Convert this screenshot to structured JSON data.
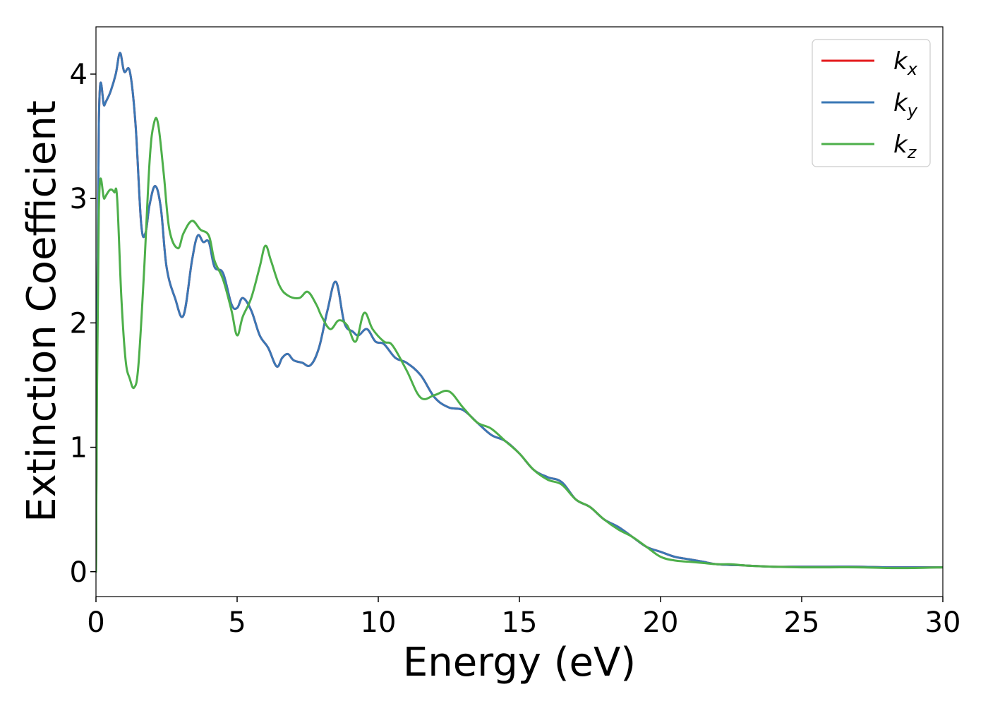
{
  "chart_data": {
    "type": "line",
    "title": "",
    "xlabel": "Energy (eV)",
    "ylabel": "Extinction Coefficient",
    "xlim": [
      0,
      30
    ],
    "ylim": [
      -0.2,
      4.38
    ],
    "xticks": [
      0,
      5,
      10,
      15,
      20,
      25,
      30
    ],
    "yticks": [
      0,
      1,
      2,
      3,
      4
    ],
    "grid": false,
    "legend_position": "top-right",
    "series": [
      {
        "name": "k_x",
        "base": "k",
        "sub": "x",
        "color": "#e41a1c",
        "x": [
          0,
          0.1,
          0.3,
          0.5,
          0.7,
          0.85,
          1.0,
          1.2,
          1.4,
          1.6,
          1.75,
          1.9,
          2.1,
          2.3,
          2.5,
          2.8,
          3.1,
          3.4,
          3.6,
          3.8,
          4.0,
          4.2,
          4.5,
          4.8,
          5.0,
          5.2,
          5.5,
          5.8,
          6.1,
          6.4,
          6.6,
          6.8,
          7.0,
          7.3,
          7.6,
          7.9,
          8.2,
          8.5,
          8.8,
          9.1,
          9.3,
          9.6,
          9.9,
          10.2,
          10.6,
          11.0,
          11.5,
          12.0,
          12.5,
          13.0,
          13.5,
          14.0,
          14.5,
          15.0,
          15.5,
          16.0,
          16.5,
          17.0,
          17.5,
          18.0,
          18.5,
          19.0,
          19.5,
          20.0,
          20.5,
          21.0,
          21.5,
          22.0,
          23.0,
          24.0,
          25.0,
          26.0,
          27.0,
          28.0,
          29.0,
          30.0
        ],
        "y": [
          0,
          3.6,
          3.75,
          3.85,
          4.0,
          4.17,
          4.02,
          4.02,
          3.6,
          2.8,
          2.72,
          2.95,
          3.1,
          2.92,
          2.45,
          2.2,
          2.06,
          2.5,
          2.7,
          2.65,
          2.65,
          2.45,
          2.4,
          2.15,
          2.12,
          2.2,
          2.1,
          1.9,
          1.8,
          1.65,
          1.72,
          1.75,
          1.7,
          1.68,
          1.66,
          1.8,
          2.1,
          2.33,
          2.0,
          1.93,
          1.9,
          1.95,
          1.85,
          1.83,
          1.72,
          1.68,
          1.58,
          1.4,
          1.32,
          1.3,
          1.2,
          1.1,
          1.05,
          0.95,
          0.82,
          0.76,
          0.72,
          0.58,
          0.52,
          0.42,
          0.36,
          0.28,
          0.2,
          0.16,
          0.12,
          0.1,
          0.08,
          0.06,
          0.05,
          0.04,
          0.04,
          0.04,
          0.04,
          0.035,
          0.035,
          0.035
        ]
      },
      {
        "name": "k_y",
        "base": "k",
        "sub": "y",
        "color": "#3a77b5",
        "x": [
          0,
          0.1,
          0.3,
          0.5,
          0.7,
          0.85,
          1.0,
          1.2,
          1.4,
          1.6,
          1.75,
          1.9,
          2.1,
          2.3,
          2.5,
          2.8,
          3.1,
          3.4,
          3.6,
          3.8,
          4.0,
          4.2,
          4.5,
          4.8,
          5.0,
          5.2,
          5.5,
          5.8,
          6.1,
          6.4,
          6.6,
          6.8,
          7.0,
          7.3,
          7.6,
          7.9,
          8.2,
          8.5,
          8.8,
          9.1,
          9.3,
          9.6,
          9.9,
          10.2,
          10.6,
          11.0,
          11.5,
          12.0,
          12.5,
          13.0,
          13.5,
          14.0,
          14.5,
          15.0,
          15.5,
          16.0,
          16.5,
          17.0,
          17.5,
          18.0,
          18.5,
          19.0,
          19.5,
          20.0,
          20.5,
          21.0,
          21.5,
          22.0,
          23.0,
          24.0,
          25.0,
          26.0,
          27.0,
          28.0,
          29.0,
          30.0
        ],
        "y": [
          0,
          3.6,
          3.75,
          3.85,
          4.0,
          4.17,
          4.02,
          4.02,
          3.6,
          2.8,
          2.72,
          2.95,
          3.1,
          2.92,
          2.45,
          2.2,
          2.06,
          2.5,
          2.7,
          2.65,
          2.65,
          2.45,
          2.4,
          2.15,
          2.12,
          2.2,
          2.1,
          1.9,
          1.8,
          1.65,
          1.72,
          1.75,
          1.7,
          1.68,
          1.66,
          1.8,
          2.1,
          2.33,
          2.0,
          1.93,
          1.9,
          1.95,
          1.85,
          1.83,
          1.72,
          1.68,
          1.58,
          1.4,
          1.32,
          1.3,
          1.2,
          1.1,
          1.05,
          0.95,
          0.82,
          0.76,
          0.72,
          0.58,
          0.52,
          0.42,
          0.36,
          0.28,
          0.2,
          0.16,
          0.12,
          0.1,
          0.08,
          0.06,
          0.05,
          0.04,
          0.04,
          0.04,
          0.04,
          0.035,
          0.035,
          0.035
        ]
      },
      {
        "name": "k_z",
        "base": "k",
        "sub": "z",
        "color": "#4daf4a",
        "x": [
          0,
          0.1,
          0.3,
          0.5,
          0.65,
          0.75,
          0.9,
          1.05,
          1.2,
          1.35,
          1.5,
          1.7,
          1.9,
          2.05,
          2.2,
          2.4,
          2.6,
          2.9,
          3.1,
          3.4,
          3.7,
          4.0,
          4.2,
          4.5,
          4.8,
          5.0,
          5.2,
          5.5,
          5.8,
          6.0,
          6.2,
          6.5,
          6.8,
          7.2,
          7.5,
          7.8,
          8.0,
          8.3,
          8.6,
          8.9,
          9.2,
          9.5,
          9.8,
          10.2,
          10.5,
          11.0,
          11.5,
          12.0,
          12.5,
          13.0,
          13.5,
          14.0,
          14.5,
          15.0,
          15.5,
          16.0,
          16.5,
          17.0,
          17.5,
          18.0,
          18.5,
          19.0,
          19.5,
          20.0,
          20.5,
          21.0,
          21.5,
          22.0,
          22.5,
          23.0,
          24.0,
          25.0,
          26.0,
          27.0,
          28.0,
          29.0,
          30.0
        ],
        "y": [
          0,
          2.9,
          3.0,
          3.07,
          3.05,
          3.0,
          2.2,
          1.7,
          1.55,
          1.48,
          1.65,
          2.4,
          3.3,
          3.6,
          3.6,
          3.2,
          2.75,
          2.6,
          2.72,
          2.82,
          2.75,
          2.7,
          2.5,
          2.35,
          2.1,
          1.9,
          2.05,
          2.2,
          2.45,
          2.62,
          2.5,
          2.3,
          2.22,
          2.2,
          2.25,
          2.15,
          2.05,
          1.95,
          2.02,
          1.98,
          1.85,
          2.08,
          1.95,
          1.85,
          1.82,
          1.62,
          1.4,
          1.42,
          1.45,
          1.32,
          1.2,
          1.15,
          1.05,
          0.95,
          0.82,
          0.74,
          0.7,
          0.58,
          0.52,
          0.42,
          0.34,
          0.28,
          0.2,
          0.12,
          0.09,
          0.08,
          0.07,
          0.06,
          0.06,
          0.05,
          0.04,
          0.035,
          0.035,
          0.035,
          0.03,
          0.03,
          0.035
        ]
      }
    ]
  }
}
